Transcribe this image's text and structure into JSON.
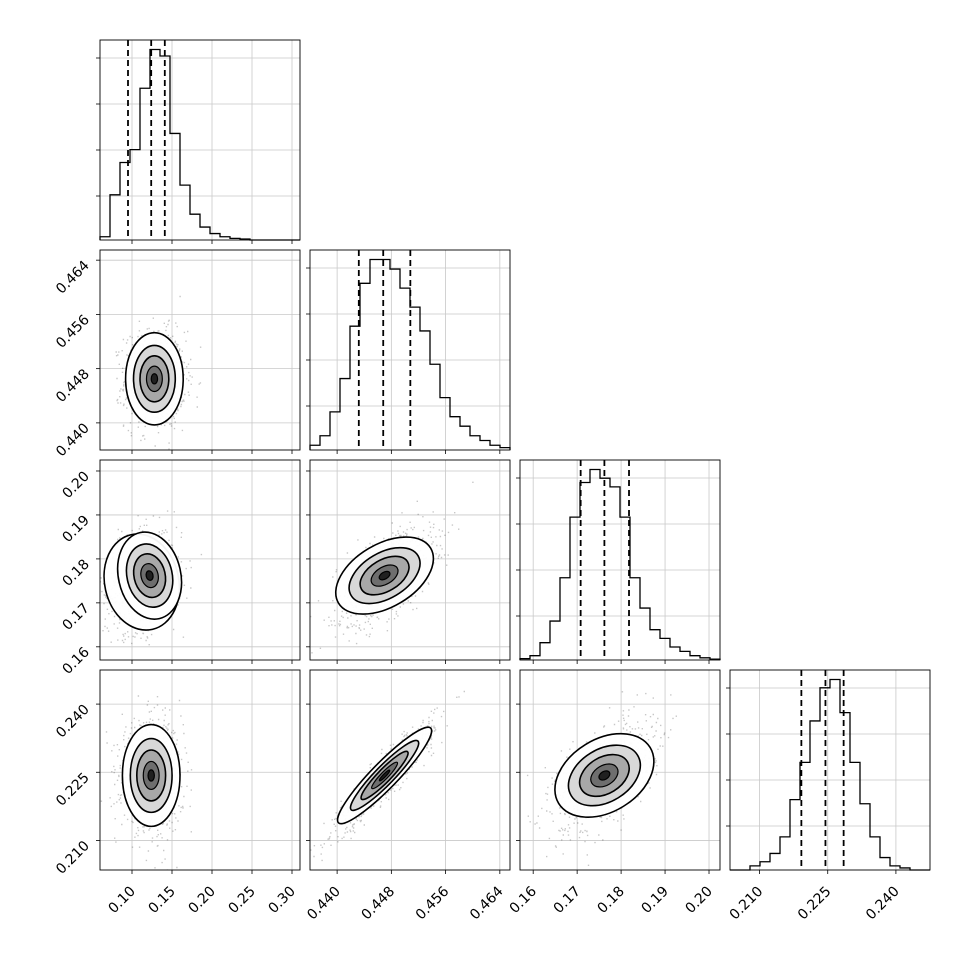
{
  "chart_data": {
    "type": "corner",
    "grid": true,
    "parameters": [
      {
        "range": [
          0.06,
          0.31
        ],
        "ticks": [
          0.1,
          0.15,
          0.2,
          0.25,
          0.3
        ],
        "tick_labels": [
          "0.10",
          "0.15",
          "0.20",
          "0.25",
          "0.30"
        ],
        "quantiles": [
          0.095,
          0.124,
          0.141
        ],
        "hist_counts": [
          1,
          14,
          24,
          28,
          47,
          59,
          57,
          33,
          17,
          8,
          4,
          2,
          1,
          0.5,
          0.3,
          0,
          0,
          0,
          0,
          0
        ]
      },
      {
        "range": [
          0.436,
          0.4655
        ],
        "ticks": [
          0.44,
          0.448,
          0.456,
          0.464
        ],
        "tick_labels": [
          "0.440",
          "0.448",
          "0.456",
          "0.464"
        ],
        "quantiles": [
          0.4432,
          0.4468,
          0.4508
        ],
        "hist_counts": [
          1,
          3,
          8,
          15,
          26,
          35,
          40,
          40,
          38,
          34,
          30,
          25,
          18,
          11,
          7,
          5,
          3,
          2,
          1,
          0.5
        ]
      },
      {
        "range": [
          0.157,
          0.2025
        ],
        "ticks": [
          0.16,
          0.17,
          0.18,
          0.19,
          0.2
        ],
        "tick_labels": [
          "0.16",
          "0.17",
          "0.18",
          "0.19",
          "0.20"
        ],
        "quantiles": [
          0.1708,
          0.1762,
          0.1818
        ],
        "hist_counts": [
          0.3,
          1,
          4,
          9,
          19,
          33,
          41,
          44,
          42,
          40,
          33,
          19,
          12,
          7,
          5,
          3,
          2,
          1,
          0.5,
          0.2
        ]
      },
      {
        "range": [
          0.2035,
          0.2475
        ],
        "ticks": [
          0.21,
          0.225,
          0.24
        ],
        "tick_labels": [
          "0.210",
          "0.225",
          "0.240"
        ],
        "quantiles": [
          0.2192,
          0.2245,
          0.2285
        ],
        "hist_counts": [
          0,
          0,
          1,
          2,
          4,
          8,
          17,
          26,
          36,
          44,
          46,
          38,
          26,
          16,
          8,
          3,
          1,
          0.5,
          0,
          0
        ]
      }
    ],
    "pairs": [
      {
        "row": 1,
        "col": 0,
        "center": [
          0.128,
          0.4465
        ],
        "sd": [
          0.018,
          0.0034
        ],
        "corr": 0.0,
        "bimodal": false
      },
      {
        "row": 2,
        "col": 0,
        "center": [
          0.122,
          0.1762
        ],
        "sd": [
          0.019,
          0.0052
        ],
        "corr": 0.15,
        "bimodal": true
      },
      {
        "row": 2,
        "col": 1,
        "center": [
          0.447,
          0.1762
        ],
        "sd": [
          0.0034,
          0.0052
        ],
        "corr": 0.6,
        "bimodal": false
      },
      {
        "row": 3,
        "col": 0,
        "center": [
          0.124,
          0.2243
        ],
        "sd": [
          0.018,
          0.0056
        ],
        "corr": 0.0,
        "bimodal": false
      },
      {
        "row": 3,
        "col": 1,
        "center": [
          0.447,
          0.2243
        ],
        "sd": [
          0.0034,
          0.0056
        ],
        "corr": 0.93,
        "bimodal": false
      },
      {
        "row": 3,
        "col": 2,
        "center": [
          0.1762,
          0.2243
        ],
        "sd": [
          0.0052,
          0.0056
        ],
        "corr": 0.55,
        "bimodal": false
      }
    ]
  }
}
